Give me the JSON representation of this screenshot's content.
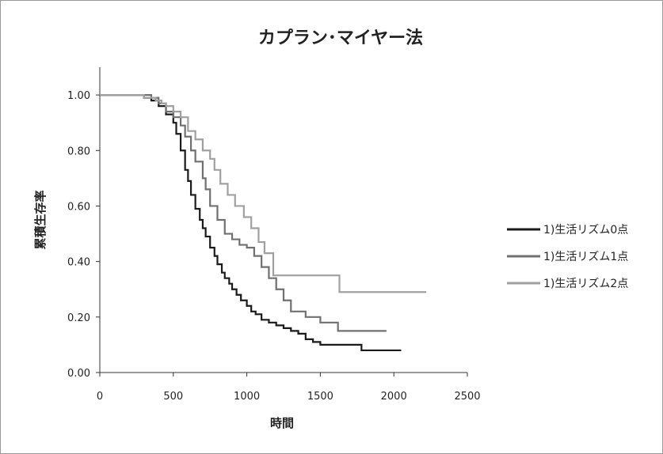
{
  "chart_data": {
    "type": "line",
    "title": "カプラン･マイヤー法",
    "xlabel": "時間",
    "ylabel": "累積生存率",
    "xlim": [
      0,
      2500
    ],
    "ylim": [
      0,
      1.1
    ],
    "xticks": [
      "0",
      "500",
      "1000",
      "1500",
      "2000",
      "2500"
    ],
    "yticks": [
      "0.00",
      "0.20",
      "0.40",
      "0.60",
      "0.80",
      "1.00"
    ],
    "grid": false,
    "legend_position": "right",
    "step": true,
    "series": [
      {
        "name": "1)生活リズム0点",
        "color": "#1a1a1a",
        "x": [
          0,
          300,
          350,
          400,
          450,
          500,
          520,
          550,
          580,
          600,
          620,
          650,
          680,
          700,
          720,
          750,
          780,
          800,
          830,
          850,
          880,
          900,
          930,
          960,
          1000,
          1030,
          1060,
          1100,
          1150,
          1200,
          1250,
          1300,
          1350,
          1400,
          1450,
          1500,
          1600,
          1700,
          1780,
          1900,
          2000,
          2050
        ],
        "y": [
          1.0,
          0.99,
          0.98,
          0.96,
          0.93,
          0.9,
          0.86,
          0.8,
          0.73,
          0.69,
          0.64,
          0.59,
          0.55,
          0.52,
          0.49,
          0.45,
          0.42,
          0.39,
          0.36,
          0.34,
          0.32,
          0.3,
          0.28,
          0.26,
          0.24,
          0.22,
          0.21,
          0.19,
          0.18,
          0.17,
          0.16,
          0.15,
          0.14,
          0.12,
          0.11,
          0.1,
          0.1,
          0.1,
          0.08,
          0.08,
          0.08,
          0.08
        ]
      },
      {
        "name": "1)生活リズム1点",
        "color": "#707070",
        "x": [
          0,
          350,
          400,
          450,
          500,
          550,
          580,
          620,
          650,
          700,
          720,
          750,
          800,
          850,
          900,
          950,
          1000,
          1050,
          1100,
          1150,
          1200,
          1250,
          1300,
          1400,
          1500,
          1620,
          1700,
          1900,
          1950
        ],
        "y": [
          1.0,
          0.99,
          0.97,
          0.94,
          0.92,
          0.89,
          0.85,
          0.8,
          0.76,
          0.7,
          0.66,
          0.6,
          0.55,
          0.5,
          0.48,
          0.46,
          0.45,
          0.42,
          0.38,
          0.34,
          0.3,
          0.26,
          0.22,
          0.2,
          0.18,
          0.15,
          0.15,
          0.15,
          0.15
        ]
      },
      {
        "name": "1)生活リズム2点",
        "color": "#a0a0a0",
        "x": [
          0,
          250,
          300,
          380,
          420,
          450,
          500,
          550,
          600,
          650,
          700,
          750,
          780,
          820,
          870,
          920,
          980,
          1030,
          1080,
          1120,
          1180,
          1250,
          1350,
          1500,
          1630,
          1700,
          2000,
          2220
        ],
        "y": [
          1.0,
          1.0,
          0.99,
          0.98,
          0.97,
          0.96,
          0.94,
          0.92,
          0.87,
          0.84,
          0.8,
          0.77,
          0.73,
          0.68,
          0.64,
          0.6,
          0.56,
          0.52,
          0.47,
          0.43,
          0.35,
          0.35,
          0.35,
          0.35,
          0.29,
          0.29,
          0.29,
          0.29
        ]
      }
    ]
  }
}
